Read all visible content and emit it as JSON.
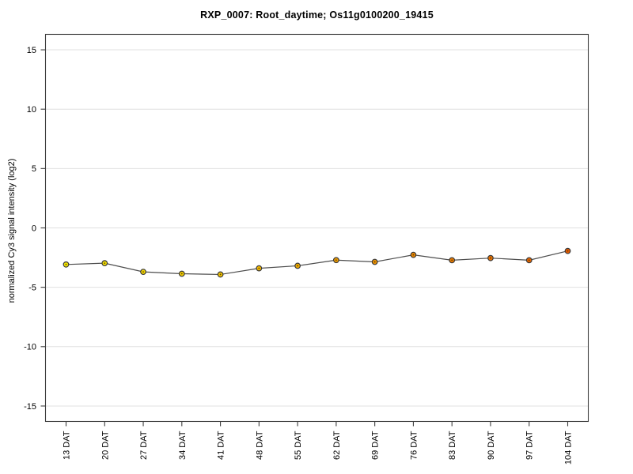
{
  "figure": {
    "background": "#FFFFFF"
  },
  "chart_data": {
    "type": "line",
    "title": "RXP_0007: Root_daytime; Os11g0100200_19415",
    "xlabel": "",
    "ylabel": "normalized Cy3 signal intensity (log2)",
    "categories": [
      "13 DAT",
      "20 DAT",
      "27 DAT",
      "34 DAT",
      "41 DAT",
      "48 DAT",
      "55 DAT",
      "62 DAT",
      "69 DAT",
      "76 DAT",
      "83 DAT",
      "90 DAT",
      "97 DAT",
      "104 DAT"
    ],
    "values": [
      -3.08,
      -2.97,
      -3.7,
      -3.86,
      -3.92,
      -3.4,
      -3.19,
      -2.71,
      -2.86,
      -2.27,
      -2.72,
      -2.54,
      -2.72,
      -1.94
    ],
    "ylim": [
      -16.3,
      16.3
    ],
    "yticks": [
      15,
      10,
      5,
      0,
      -5,
      -10,
      -15
    ],
    "grid": true,
    "legend": "none",
    "colors": {
      "line": "#4D4D4D",
      "grid": "#E0E0E0",
      "frame": "#3D3D3D",
      "tick": "#3D3D3D",
      "label": "#000000",
      "point_border": "#3A3A3A",
      "point_center_dot": "#4A3800"
    },
    "point_colors": [
      "#F2E400",
      "#F3DE00",
      "#F4D600",
      "#F4CD00",
      "#F4C400",
      "#F3B800",
      "#F2AC00",
      "#F09C00",
      "#EF9200",
      "#ED8600",
      "#EC7B00",
      "#EA7000",
      "#E96500",
      "#E75A00"
    ]
  }
}
